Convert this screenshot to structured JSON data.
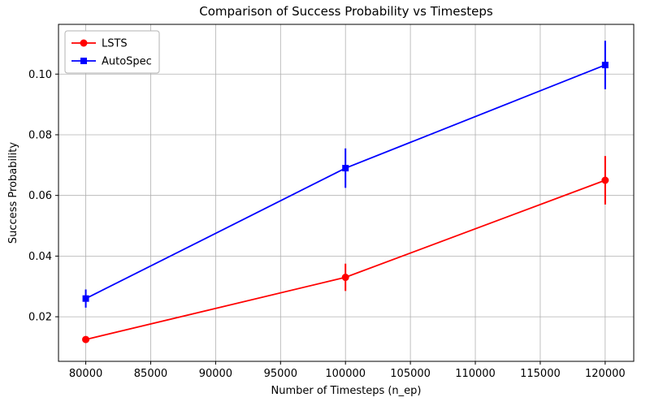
{
  "chart_data": {
    "type": "line",
    "title": "Comparison of Success Probability vs Timesteps",
    "xlabel": "Number of Timesteps (n_ep)",
    "ylabel": "Success Probability",
    "x": [
      80000,
      100000,
      120000
    ],
    "series": [
      {
        "name": "LSTS",
        "color": "#ff0000",
        "marker": "circle",
        "values": [
          0.0125,
          0.033,
          0.065
        ],
        "errors": [
          0.001,
          0.0045,
          0.008
        ]
      },
      {
        "name": "AutoSpec",
        "color": "#0000ff",
        "marker": "square",
        "values": [
          0.026,
          0.069,
          0.103
        ],
        "errors": [
          0.003,
          0.0065,
          0.008
        ]
      }
    ],
    "xlim": [
      77900,
      122200
    ],
    "ylim": [
      0.0053,
      0.1164
    ],
    "xticks": [
      80000,
      85000,
      90000,
      95000,
      100000,
      105000,
      110000,
      115000,
      120000
    ],
    "yticks": [
      0.02,
      0.04,
      0.06,
      0.08,
      0.1
    ],
    "grid": true,
    "legend_position": "upper left",
    "grid_color": "#b0b0b0",
    "frame_color": "#000000",
    "background_color": "#ffffff"
  }
}
